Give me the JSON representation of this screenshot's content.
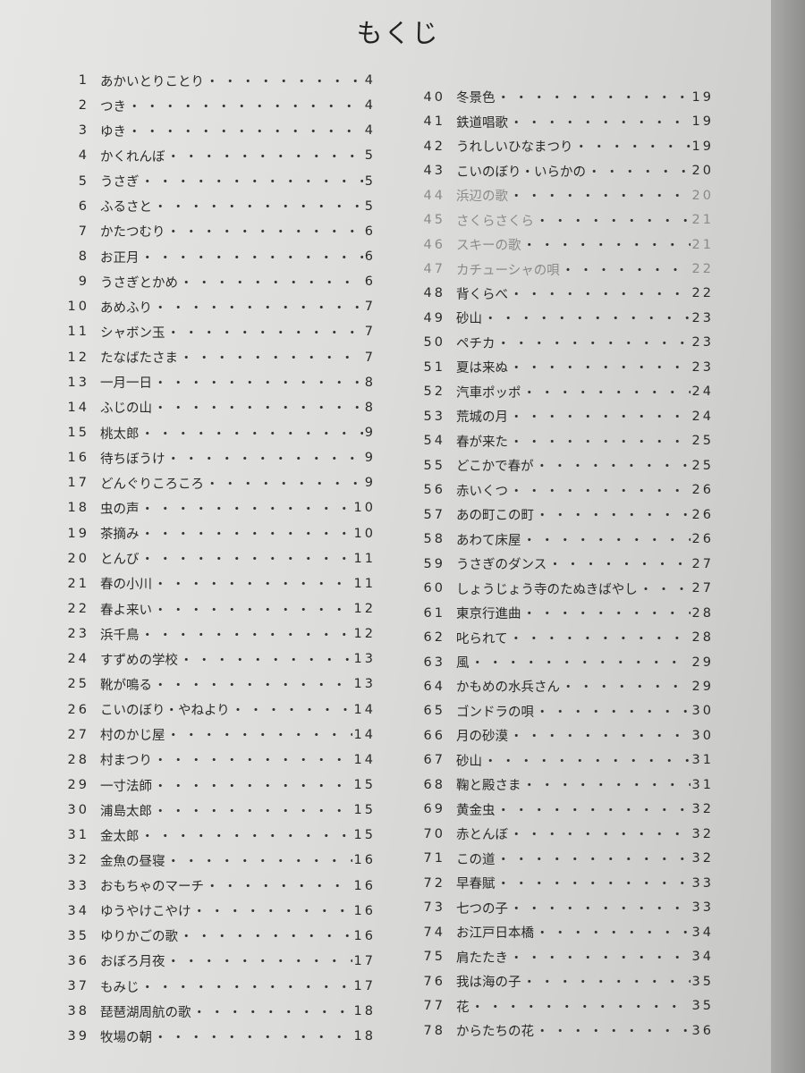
{
  "title": "もくじ",
  "leader": "・・・・・・・・・・・・・・・・・・・・・・・・・・・・・・・・・・",
  "columns": [
    {
      "entries": [
        {
          "no": "1",
          "title": "あかいとりことり",
          "page": "4"
        },
        {
          "no": "2",
          "title": "つき",
          "page": "4"
        },
        {
          "no": "3",
          "title": "ゆき",
          "page": "4"
        },
        {
          "no": "4",
          "title": "かくれんぼ",
          "page": "5"
        },
        {
          "no": "5",
          "title": "うさぎ",
          "page": "5"
        },
        {
          "no": "6",
          "title": "ふるさと",
          "page": "5"
        },
        {
          "no": "7",
          "title": "かたつむり",
          "page": "6"
        },
        {
          "no": "8",
          "title": "お正月",
          "page": "6"
        },
        {
          "no": "9",
          "title": "うさぎとかめ",
          "page": "6"
        },
        {
          "no": "10",
          "title": "あめふり",
          "page": "7"
        },
        {
          "no": "11",
          "title": "シャボン玉",
          "page": "7"
        },
        {
          "no": "12",
          "title": "たなばたさま",
          "page": "7"
        },
        {
          "no": "13",
          "title": "一月一日",
          "page": "8"
        },
        {
          "no": "14",
          "title": "ふじの山",
          "page": "8"
        },
        {
          "no": "15",
          "title": "桃太郎",
          "page": "9"
        },
        {
          "no": "16",
          "title": "待ちぼうけ",
          "page": "9"
        },
        {
          "no": "17",
          "title": "どんぐりころころ",
          "page": "9"
        },
        {
          "no": "18",
          "title": "虫の声",
          "page": "10"
        },
        {
          "no": "19",
          "title": "茶摘み",
          "page": "10"
        },
        {
          "no": "20",
          "title": "とんび",
          "page": "11"
        },
        {
          "no": "21",
          "title": "春の小川",
          "page": "11"
        },
        {
          "no": "22",
          "title": "春よ来い",
          "page": "12"
        },
        {
          "no": "23",
          "title": "浜千鳥",
          "page": "12"
        },
        {
          "no": "24",
          "title": "すずめの学校",
          "page": "13"
        },
        {
          "no": "25",
          "title": "靴が鳴る",
          "page": "13"
        },
        {
          "no": "26",
          "title": "こいのぼり・やねより",
          "page": "14"
        },
        {
          "no": "27",
          "title": "村のかじ屋",
          "page": "14"
        },
        {
          "no": "28",
          "title": "村まつり",
          "page": "14"
        },
        {
          "no": "29",
          "title": "一寸法師",
          "page": "15"
        },
        {
          "no": "30",
          "title": "浦島太郎",
          "page": "15"
        },
        {
          "no": "31",
          "title": "金太郎",
          "page": "15"
        },
        {
          "no": "32",
          "title": "金魚の昼寝",
          "page": "16"
        },
        {
          "no": "33",
          "title": "おもちゃのマーチ",
          "page": "16"
        },
        {
          "no": "34",
          "title": "ゆうやけこやけ",
          "page": "16"
        },
        {
          "no": "35",
          "title": "ゆりかごの歌",
          "page": "16"
        },
        {
          "no": "36",
          "title": "おぼろ月夜",
          "page": "17"
        },
        {
          "no": "37",
          "title": "もみじ",
          "page": "17"
        },
        {
          "no": "38",
          "title": "琵琶湖周航の歌",
          "page": "18"
        },
        {
          "no": "39",
          "title": "牧場の朝",
          "page": "18"
        }
      ]
    },
    {
      "entries": [
        {
          "no": "40",
          "title": "冬景色",
          "page": "19"
        },
        {
          "no": "41",
          "title": "鉄道唱歌",
          "page": "19"
        },
        {
          "no": "42",
          "title": "うれしいひなまつり",
          "page": "19"
        },
        {
          "no": "43",
          "title": "こいのぼり・いらかの",
          "page": "20"
        },
        {
          "no": "44",
          "title": "浜辺の歌",
          "page": "20"
        },
        {
          "no": "45",
          "title": "さくらさくら",
          "page": "21"
        },
        {
          "no": "46",
          "title": "スキーの歌",
          "page": "21"
        },
        {
          "no": "47",
          "title": "カチューシャの唄",
          "page": "22"
        },
        {
          "no": "48",
          "title": "背くらべ",
          "page": "22"
        },
        {
          "no": "49",
          "title": "砂山",
          "page": "23"
        },
        {
          "no": "50",
          "title": "ペチカ",
          "page": "23"
        },
        {
          "no": "51",
          "title": "夏は来ぬ",
          "page": "23"
        },
        {
          "no": "52",
          "title": "汽車ポッポ",
          "page": "24"
        },
        {
          "no": "53",
          "title": "荒城の月",
          "page": "24"
        },
        {
          "no": "54",
          "title": "春が来た",
          "page": "25"
        },
        {
          "no": "55",
          "title": "どこかで春が",
          "page": "25"
        },
        {
          "no": "56",
          "title": "赤いくつ",
          "page": "26"
        },
        {
          "no": "57",
          "title": "あの町この町",
          "page": "26"
        },
        {
          "no": "58",
          "title": "あわて床屋",
          "page": "26"
        },
        {
          "no": "59",
          "title": "うさぎのダンス",
          "page": "27"
        },
        {
          "no": "60",
          "title": "しょうじょう寺のたぬきばやし",
          "page": "27"
        },
        {
          "no": "61",
          "title": "東京行進曲",
          "page": "28"
        },
        {
          "no": "62",
          "title": "叱られて",
          "page": "28"
        },
        {
          "no": "63",
          "title": "風",
          "page": "29"
        },
        {
          "no": "64",
          "title": "かもめの水兵さん",
          "page": "29"
        },
        {
          "no": "65",
          "title": "ゴンドラの唄",
          "page": "30"
        },
        {
          "no": "66",
          "title": "月の砂漠",
          "page": "30"
        },
        {
          "no": "67",
          "title": "砂山",
          "page": "31"
        },
        {
          "no": "68",
          "title": "鞠と殿さま",
          "page": "31"
        },
        {
          "no": "69",
          "title": "黄金虫",
          "page": "32"
        },
        {
          "no": "70",
          "title": "赤とんぼ",
          "page": "32"
        },
        {
          "no": "71",
          "title": "この道",
          "page": "32"
        },
        {
          "no": "72",
          "title": "早春賦",
          "page": "33"
        },
        {
          "no": "73",
          "title": "七つの子",
          "page": "33"
        },
        {
          "no": "74",
          "title": "お江戸日本橋",
          "page": "34"
        },
        {
          "no": "75",
          "title": "肩たたき",
          "page": "34"
        },
        {
          "no": "76",
          "title": "我は海の子",
          "page": "35"
        },
        {
          "no": "77",
          "title": "花",
          "page": "35"
        },
        {
          "no": "78",
          "title": "からたちの花",
          "page": "36"
        }
      ]
    }
  ]
}
